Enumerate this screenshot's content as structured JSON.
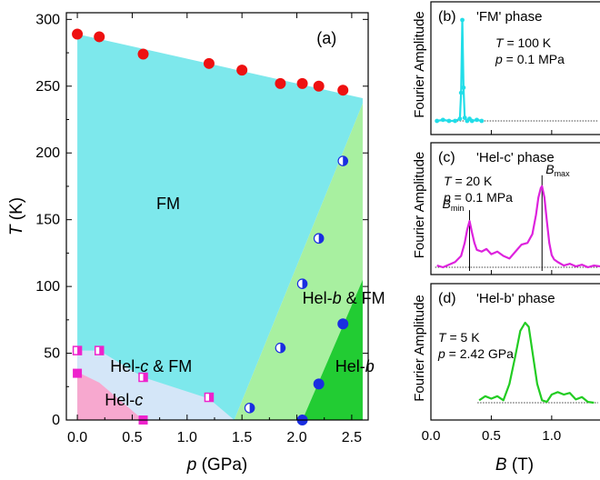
{
  "chart_data": [
    {
      "id": "a",
      "type": "scatter",
      "panel_label": "(a)",
      "xlabel": "p (GPa)",
      "xlabel_main": "p",
      "xlabel_unit": " (GPa)",
      "ylabel": "T (K)",
      "ylabel_main": "T",
      "ylabel_unit": " (K)",
      "xlim": [
        -0.1,
        2.65
      ],
      "ylim": [
        0,
        305
      ],
      "xticks": [
        0.0,
        0.5,
        1.0,
        1.5,
        2.0,
        2.5
      ],
      "xtick_labels": [
        "0.0",
        "0.5",
        "1.0",
        "1.5",
        "2.0",
        "2.5"
      ],
      "yticks": [
        0,
        50,
        100,
        150,
        200,
        250,
        300
      ],
      "ytick_labels": [
        "0",
        "50",
        "100",
        "150",
        "200",
        "250",
        "300"
      ],
      "regions": [
        {
          "key": "fm",
          "label": "FM",
          "color": "#7de8ec",
          "polygon": [
            [
              0,
              289
            ],
            [
              2.6,
              241
            ],
            [
              2.6,
              237
            ],
            [
              1.43,
              0
            ],
            [
              0,
              0
            ]
          ],
          "label_pos": [
            1.0,
            158
          ]
        },
        {
          "key": "helb_fm",
          "label": "Hel-b & FM",
          "color": "#a8f0a0",
          "polygon": [
            [
              1.43,
              0
            ],
            [
              2.6,
              237
            ],
            [
              2.6,
              105
            ],
            [
              2.05,
              0
            ]
          ],
          "label_pos": [
            2.05,
            87
          ]
        },
        {
          "key": "helb",
          "label": "Hel-b",
          "color": "#22cc33",
          "polygon": [
            [
              2.05,
              0
            ],
            [
              2.6,
              105
            ],
            [
              2.6,
              0
            ]
          ],
          "label_pos": [
            2.35,
            36
          ]
        },
        {
          "key": "helc_fm",
          "label": "Hel-c & FM",
          "color": "#d4e6f8",
          "polygon": [
            [
              0,
              52
            ],
            [
              0.2,
              52
            ],
            [
              0.6,
              32
            ],
            [
              1.2,
              16
            ],
            [
              1.43,
              0
            ],
            [
              0,
              0
            ]
          ],
          "label_pos": [
            0.3,
            36
          ]
        },
        {
          "key": "helc",
          "label": "Hel-c",
          "color": "#f7a8cf",
          "polygon": [
            [
              0,
              36
            ],
            [
              0.2,
              28
            ],
            [
              0.6,
              0
            ],
            [
              0,
              0
            ]
          ],
          "label_pos": [
            0.25,
            11
          ]
        }
      ],
      "label_parts": {
        "fm": [
          "FM"
        ],
        "helb_fm": [
          "Hel-",
          "b",
          " & FM"
        ],
        "helb": [
          "Hel-",
          "b"
        ],
        "helc_fm": [
          "Hel-",
          "c",
          " & FM"
        ],
        "helc": [
          "Hel-",
          "c"
        ]
      },
      "series": [
        {
          "marker": "red-circle",
          "color": "#ee1111",
          "points": [
            [
              0.0,
              289
            ],
            [
              0.2,
              287
            ],
            [
              0.6,
              274
            ],
            [
              1.2,
              267
            ],
            [
              1.5,
              262
            ],
            [
              1.85,
              252
            ],
            [
              2.05,
              252
            ],
            [
              2.2,
              250
            ],
            [
              2.42,
              247
            ]
          ]
        },
        {
          "marker": "half-blue-circle",
          "color": "#1a2ee0",
          "points": [
            [
              2.42,
              194
            ],
            [
              2.2,
              136
            ],
            [
              2.05,
              102
            ],
            [
              1.85,
              54
            ],
            [
              1.57,
              9
            ]
          ]
        },
        {
          "marker": "blue-circle",
          "color": "#1a2ee0",
          "points": [
            [
              2.42,
              72
            ],
            [
              2.2,
              27
            ],
            [
              2.05,
              0
            ]
          ]
        },
        {
          "marker": "half-magenta-square",
          "color": "#ee22cc",
          "points": [
            [
              0.0,
              52
            ],
            [
              0.2,
              52
            ],
            [
              0.6,
              32
            ],
            [
              1.2,
              17
            ]
          ]
        },
        {
          "marker": "magenta-square",
          "color": "#ee22cc",
          "points": [
            [
              0.0,
              35
            ],
            [
              0.6,
              0
            ]
          ]
        }
      ]
    },
    {
      "id": "b",
      "type": "line",
      "panel_label": "(b)",
      "phase": "'FM' phase",
      "T_label": "T",
      "T_value": " = 100 K",
      "p_label": "p",
      "p_value": " = 0.1 MPa",
      "color": "#22dde8",
      "x": [
        0.05,
        0.1,
        0.15,
        0.2,
        0.24,
        0.25,
        0.26,
        0.27,
        0.28,
        0.3,
        0.32,
        0.34,
        0.38,
        0.42
      ],
      "y": [
        0.03,
        0.04,
        0.03,
        0.03,
        0.05,
        0.3,
        1.0,
        0.35,
        0.06,
        0.03,
        0.05,
        0.03,
        0.04,
        0.03
      ],
      "baseline": 0.03
    },
    {
      "id": "c",
      "type": "line",
      "panel_label": "(c)",
      "phase": "'Hel-c' phase",
      "T_label": "T",
      "T_value": " = 20 K",
      "p_label": "p",
      "p_value": " = 0.1 MPa",
      "color": "#dd22dd",
      "annotations": [
        {
          "main": "B",
          "sub": "min",
          "x": 0.32
        },
        {
          "main": "B",
          "sub": "max",
          "x": 0.92
        }
      ],
      "x": [
        0.05,
        0.1,
        0.15,
        0.2,
        0.25,
        0.28,
        0.3,
        0.32,
        0.34,
        0.36,
        0.38,
        0.42,
        0.46,
        0.5,
        0.55,
        0.6,
        0.65,
        0.7,
        0.75,
        0.8,
        0.84,
        0.87,
        0.89,
        0.91,
        0.92,
        0.94,
        0.96,
        0.98,
        1.0,
        1.02,
        1.05,
        1.1,
        1.15,
        1.2,
        1.25,
        1.3,
        1.35,
        1.4
      ],
      "y": [
        0.04,
        0.02,
        0.05,
        0.08,
        0.15,
        0.3,
        0.45,
        0.55,
        0.42,
        0.3,
        0.22,
        0.2,
        0.23,
        0.17,
        0.2,
        0.15,
        0.12,
        0.2,
        0.28,
        0.3,
        0.4,
        0.62,
        0.82,
        0.93,
        0.95,
        0.82,
        0.55,
        0.3,
        0.16,
        0.11,
        0.08,
        0.04,
        0.06,
        0.03,
        0.05,
        0.02,
        0.04,
        0.03
      ],
      "baseline": 0.02
    },
    {
      "id": "d",
      "type": "line",
      "panel_label": "(d)",
      "phase": "'Hel-b' phase",
      "T_label": "T",
      "T_value": " = 5 K",
      "p_label": "p",
      "p_value": " = 2.42 GPa",
      "color": "#22cc22",
      "xlabel": "B (T)",
      "xlabel_main": "B",
      "xlabel_unit": " (T)",
      "xticks": [
        0.0,
        0.5,
        1.0
      ],
      "xtick_labels": [
        "0.0",
        "0.5",
        "1.0"
      ],
      "x": [
        0.4,
        0.45,
        0.5,
        0.55,
        0.6,
        0.65,
        0.7,
        0.74,
        0.78,
        0.81,
        0.84,
        0.88,
        0.92,
        0.96,
        1.0,
        1.05,
        1.1,
        1.15,
        1.2,
        1.25,
        1.3,
        1.35
      ],
      "y": [
        0.05,
        0.1,
        0.07,
        0.1,
        0.05,
        0.25,
        0.6,
        0.9,
        1.0,
        0.95,
        0.65,
        0.25,
        0.05,
        0.03,
        0.12,
        0.15,
        0.12,
        0.14,
        0.06,
        0.09,
        0.03,
        0.02
      ],
      "baseline": 0.02
    }
  ],
  "shared_ylabel": "Fourier Amplitude",
  "inset_xlim": [
    0.0,
    1.4
  ]
}
